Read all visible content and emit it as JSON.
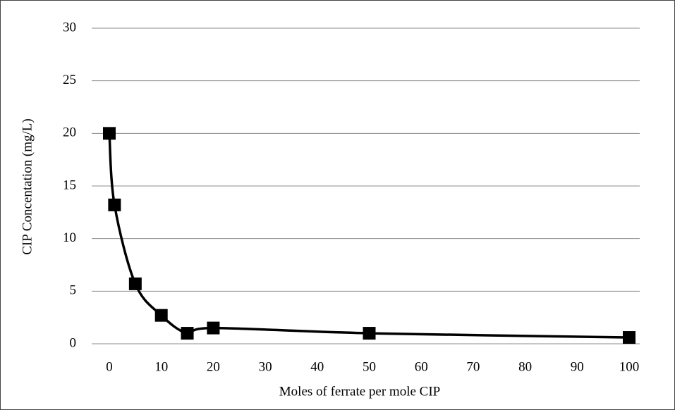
{
  "chart_data": {
    "type": "line",
    "x_label": "Moles of ferrate per mole CIP",
    "y_label": "CIP Concentation (mg/L)",
    "x": [
      0,
      1,
      5,
      10,
      15,
      20,
      50,
      100
    ],
    "series": [
      {
        "color": "#000000",
        "values": [
          20,
          13.2,
          5.7,
          2.7,
          1.0,
          1.5,
          1.0,
          0.6
        ]
      }
    ],
    "xlim": [
      0,
      100
    ],
    "xticks": [
      0,
      10,
      20,
      30,
      40,
      50,
      60,
      70,
      80,
      90,
      100
    ],
    "ylim": [
      0,
      30
    ],
    "yticks": [
      0,
      5,
      10,
      15,
      20,
      25,
      30
    ],
    "grid": true,
    "smooth": true,
    "marker": "square"
  }
}
